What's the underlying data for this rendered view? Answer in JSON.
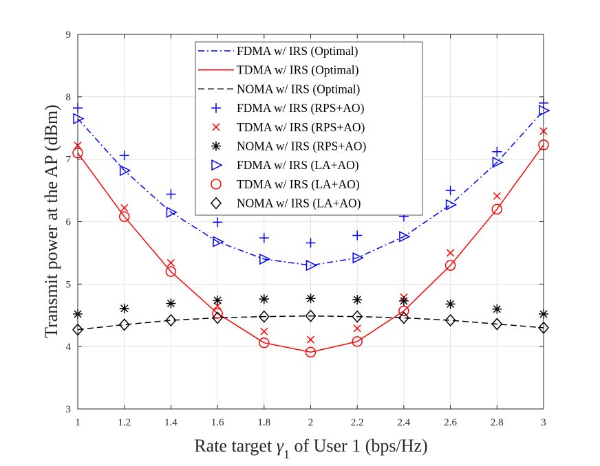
{
  "chart_data": {
    "type": "line",
    "xlabel_prefix": "Rate target ",
    "xlabel_symbol": "γ",
    "xlabel_subscript": "1",
    "xlabel_suffix": " of User 1 (bps/Hz)",
    "ylabel": "Transmit power at the AP (dBm)",
    "xlim": [
      1,
      3
    ],
    "ylim": [
      3,
      9
    ],
    "x_ticks": [
      1,
      1.2,
      1.4,
      1.6,
      1.8,
      2,
      2.2,
      2.4,
      2.6,
      2.8,
      3
    ],
    "y_ticks": [
      3,
      4,
      5,
      6,
      7,
      8,
      9
    ],
    "grid": true,
    "legend_position": "top-center",
    "x": [
      1,
      1.2,
      1.4,
      1.6,
      1.8,
      2,
      2.2,
      2.4,
      2.6,
      2.8,
      3
    ],
    "series": [
      {
        "name": "FDMA w/ IRS (Optimal)",
        "color": "#0000FF",
        "style": "dashdot",
        "marker": "none",
        "values": [
          7.65,
          6.82,
          6.15,
          5.68,
          5.4,
          5.3,
          5.42,
          5.76,
          6.27,
          6.95,
          7.78
        ]
      },
      {
        "name": "TDMA w/ IRS (Optimal)",
        "color": "#FF0000",
        "style": "solid",
        "marker": "none",
        "values": [
          7.1,
          6.08,
          5.2,
          4.53,
          4.06,
          3.91,
          4.08,
          4.57,
          5.3,
          6.2,
          7.23
        ]
      },
      {
        "name": "NOMA w/ IRS (Optimal)",
        "color": "#000000",
        "style": "dashed",
        "marker": "none",
        "values": [
          4.27,
          4.35,
          4.42,
          4.46,
          4.48,
          4.49,
          4.48,
          4.46,
          4.42,
          4.36,
          4.3
        ]
      },
      {
        "name": "FDMA w/ IRS (RPS+AO)",
        "color": "#0000FF",
        "style": "none",
        "marker": "plus",
        "values": [
          7.82,
          7.06,
          6.44,
          5.99,
          5.74,
          5.66,
          5.78,
          6.08,
          6.5,
          7.12,
          7.9
        ]
      },
      {
        "name": "TDMA w/ IRS (RPS+AO)",
        "color": "#FF0000",
        "style": "none",
        "marker": "x",
        "values": [
          7.22,
          6.22,
          5.34,
          4.65,
          4.24,
          4.11,
          4.29,
          4.79,
          5.5,
          6.41,
          7.45
        ]
      },
      {
        "name": "NOMA w/ IRS (RPS+AO)",
        "color": "#000000",
        "style": "none",
        "marker": "asterisk",
        "values": [
          4.52,
          4.61,
          4.69,
          4.74,
          4.76,
          4.77,
          4.75,
          4.73,
          4.68,
          4.6,
          4.52
        ]
      },
      {
        "name": "FDMA w/ IRS (LA+AO)",
        "color": "#0000FF",
        "style": "none",
        "marker": "triangle-right",
        "values": [
          7.65,
          6.82,
          6.15,
          5.68,
          5.4,
          5.3,
          5.42,
          5.76,
          6.27,
          6.95,
          7.78
        ]
      },
      {
        "name": "TDMA w/ IRS (LA+AO)",
        "color": "#FF0000",
        "style": "none",
        "marker": "circle",
        "values": [
          7.1,
          6.08,
          5.2,
          4.53,
          4.06,
          3.91,
          4.08,
          4.57,
          5.3,
          6.2,
          7.23
        ]
      },
      {
        "name": "NOMA w/ IRS (LA+AO)",
        "color": "#000000",
        "style": "none",
        "marker": "diamond",
        "values": [
          4.27,
          4.35,
          4.42,
          4.46,
          4.48,
          4.49,
          4.48,
          4.46,
          4.42,
          4.36,
          4.3
        ]
      }
    ]
  }
}
